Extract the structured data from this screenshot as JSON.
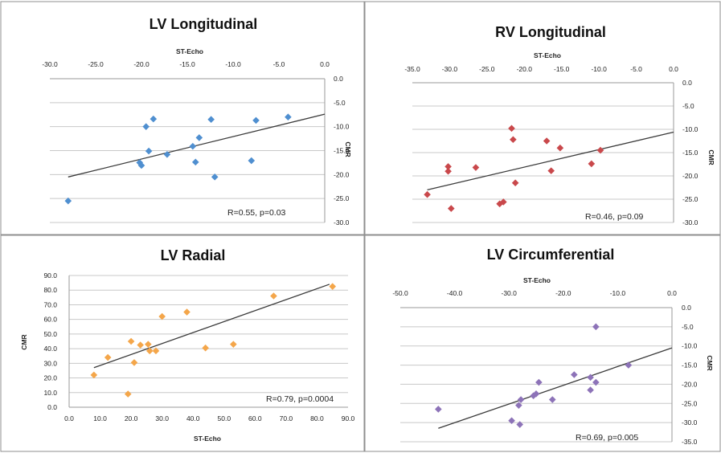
{
  "chart_data": [
    {
      "type": "scatter",
      "title": "LV Longitudinal",
      "xlabel": "ST-Echo",
      "ylabel": "CMR",
      "xlim": [
        -30,
        0
      ],
      "ylim": [
        -30,
        0
      ],
      "x_ticks": [
        "-30.0",
        "-25.0",
        "-20.0",
        "-15.0",
        "-10.0",
        "-5.0",
        "0.0"
      ],
      "y_ticks": [
        "0.0",
        "-5.0",
        "-10.0",
        "-15.0",
        "-20.0",
        "-25.0",
        "-30.0"
      ],
      "marker_color": "#4f8fd0",
      "points": [
        {
          "x": -28.0,
          "y": -25.5
        },
        {
          "x": -19.5,
          "y": -10.0
        },
        {
          "x": -18.7,
          "y": -8.4
        },
        {
          "x": -19.2,
          "y": -15.1
        },
        {
          "x": -20.2,
          "y": -17.5
        },
        {
          "x": -20.0,
          "y": -18.1
        },
        {
          "x": -17.2,
          "y": -15.8
        },
        {
          "x": -14.4,
          "y": -14.1
        },
        {
          "x": -13.7,
          "y": -12.3
        },
        {
          "x": -14.1,
          "y": -17.4
        },
        {
          "x": -12.4,
          "y": -8.5
        },
        {
          "x": -12.0,
          "y": -20.5
        },
        {
          "x": -8.0,
          "y": -17.1
        },
        {
          "x": -7.5,
          "y": -8.7
        },
        {
          "x": -4.0,
          "y": -8.0
        }
      ],
      "trendline": [
        {
          "x": -28.0,
          "y": -20.5
        },
        {
          "x": 0.0,
          "y": -7.4
        }
      ],
      "annotation": "R=0.55, p=0.03"
    },
    {
      "type": "scatter",
      "title": "RV Longitudinal",
      "xlabel": "ST-Echo",
      "ylabel": "CMR",
      "xlim": [
        -35,
        0
      ],
      "ylim": [
        -30,
        0
      ],
      "x_ticks": [
        "-35.0",
        "-30.0",
        "-25.0",
        "-20.0",
        "-15.0",
        "-10.0",
        "-5.0",
        "0.0"
      ],
      "y_ticks": [
        "0.0",
        "-5.0",
        "-10.0",
        "-15.0",
        "-20.0",
        "-25.0",
        "-30.0"
      ],
      "marker_color": "#c9484b",
      "points": [
        {
          "x": -33.0,
          "y": -24.0
        },
        {
          "x": -30.2,
          "y": -18.0
        },
        {
          "x": -30.2,
          "y": -19.0
        },
        {
          "x": -29.8,
          "y": -27.0
        },
        {
          "x": -26.5,
          "y": -18.2
        },
        {
          "x": -23.3,
          "y": -26.0
        },
        {
          "x": -22.8,
          "y": -25.6
        },
        {
          "x": -21.7,
          "y": -9.8
        },
        {
          "x": -21.5,
          "y": -12.2
        },
        {
          "x": -21.2,
          "y": -21.5
        },
        {
          "x": -17.0,
          "y": -12.5
        },
        {
          "x": -16.4,
          "y": -18.9
        },
        {
          "x": -15.2,
          "y": -14.0
        },
        {
          "x": -11.0,
          "y": -17.4
        },
        {
          "x": -9.8,
          "y": -14.5
        }
      ],
      "trendline": [
        {
          "x": -33.0,
          "y": -23.0
        },
        {
          "x": 0.0,
          "y": -10.6
        }
      ],
      "annotation": "R=0.46, p=0.09"
    },
    {
      "type": "scatter",
      "title": "LV Radial",
      "xlabel": "ST-Echo",
      "ylabel": "CMR",
      "xlim": [
        0,
        90
      ],
      "ylim": [
        0,
        90
      ],
      "x_ticks": [
        "0.0",
        "10.0",
        "20.0",
        "30.0",
        "40.0",
        "50.0",
        "60.0",
        "70.0",
        "80.0",
        "90.0"
      ],
      "y_ticks": [
        "90.0",
        "80.0",
        "70.0",
        "60.0",
        "50.0",
        "40.0",
        "30.0",
        "20.0",
        "10.0",
        "0.0"
      ],
      "marker_color": "#f4a64a",
      "points": [
        {
          "x": 8.0,
          "y": 22.0
        },
        {
          "x": 12.5,
          "y": 34.0
        },
        {
          "x": 19.0,
          "y": 9.0
        },
        {
          "x": 20.0,
          "y": 45.0
        },
        {
          "x": 21.0,
          "y": 30.5
        },
        {
          "x": 23.0,
          "y": 42.5
        },
        {
          "x": 25.5,
          "y": 43.0
        },
        {
          "x": 26.0,
          "y": 38.5
        },
        {
          "x": 28.0,
          "y": 38.5
        },
        {
          "x": 30.0,
          "y": 62.0
        },
        {
          "x": 38.0,
          "y": 65.0
        },
        {
          "x": 44.0,
          "y": 40.5
        },
        {
          "x": 53.0,
          "y": 43.0
        },
        {
          "x": 66.0,
          "y": 76.0
        },
        {
          "x": 85.0,
          "y": 82.5
        }
      ],
      "trendline": [
        {
          "x": 8.0,
          "y": 27.0
        },
        {
          "x": 84.0,
          "y": 84.0
        }
      ],
      "annotation": "R=0.79, p=0.0004"
    },
    {
      "type": "scatter",
      "title": "LV Circumferential",
      "xlabel": "ST-Echo",
      "ylabel": "CMR",
      "xlim": [
        -50,
        0
      ],
      "ylim": [
        -35,
        0
      ],
      "x_ticks": [
        "-50.0",
        "-40.0",
        "-30.0",
        "-20.0",
        "-10.0",
        "0.0"
      ],
      "y_ticks": [
        "0.0",
        "-5.0",
        "-10.0",
        "-15.0",
        "-20.0",
        "-25.0",
        "-30.0",
        "-35.0"
      ],
      "marker_color": "#8d73b8",
      "points": [
        {
          "x": -43.0,
          "y": -26.5
        },
        {
          "x": -29.5,
          "y": -29.5
        },
        {
          "x": -28.0,
          "y": -30.5
        },
        {
          "x": -28.2,
          "y": -25.5
        },
        {
          "x": -27.8,
          "y": -24.0
        },
        {
          "x": -25.5,
          "y": -23.0
        },
        {
          "x": -25.0,
          "y": -22.5
        },
        {
          "x": -24.5,
          "y": -19.5
        },
        {
          "x": -22.0,
          "y": -24.0
        },
        {
          "x": -18.0,
          "y": -17.5
        },
        {
          "x": -15.0,
          "y": -18.2
        },
        {
          "x": -15.0,
          "y": -21.5
        },
        {
          "x": -14.0,
          "y": -19.5
        },
        {
          "x": -14.0,
          "y": -5.0
        },
        {
          "x": -8.0,
          "y": -15.0
        }
      ],
      "trendline": [
        {
          "x": -43.0,
          "y": -31.5
        },
        {
          "x": 0.0,
          "y": -10.5
        }
      ],
      "annotation": "R=0.69, p=0.005"
    }
  ]
}
